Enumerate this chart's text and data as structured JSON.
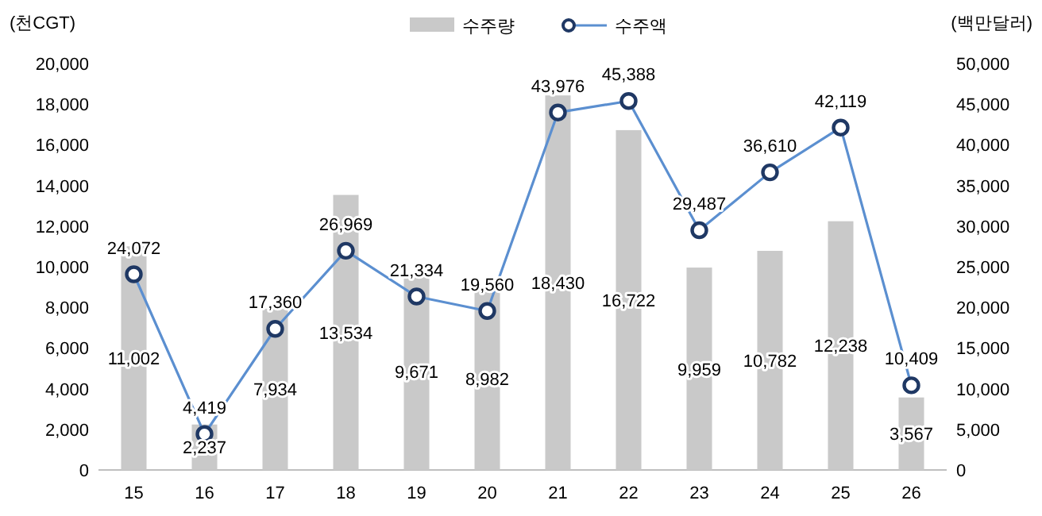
{
  "chart_data": {
    "type": "bar",
    "categories": [
      "15",
      "16",
      "17",
      "18",
      "19",
      "20",
      "21",
      "22",
      "23",
      "24",
      "25",
      "26"
    ],
    "ylabel": "(천CGT)",
    "y2label": "(백만달러)",
    "ylim": [
      0,
      20000
    ],
    "yticks": [
      {
        "value": 0,
        "label": "0"
      },
      {
        "value": 2000,
        "label": "2,000"
      },
      {
        "value": 4000,
        "label": "4,000"
      },
      {
        "value": 6000,
        "label": "6,000"
      },
      {
        "value": 8000,
        "label": "8,000"
      },
      {
        "value": 10000,
        "label": "10,000"
      },
      {
        "value": 12000,
        "label": "12,000"
      },
      {
        "value": 14000,
        "label": "14,000"
      },
      {
        "value": 16000,
        "label": "16,000"
      },
      {
        "value": 18000,
        "label": "18,000"
      },
      {
        "value": 20000,
        "label": "20,000"
      }
    ],
    "y2lim": [
      0,
      50000
    ],
    "y2ticks": [
      {
        "value": 0,
        "label": "0"
      },
      {
        "value": 5000,
        "label": "5,000"
      },
      {
        "value": 10000,
        "label": "10,000"
      },
      {
        "value": 15000,
        "label": "15,000"
      },
      {
        "value": 20000,
        "label": "20,000"
      },
      {
        "value": 25000,
        "label": "25,000"
      },
      {
        "value": 30000,
        "label": "30,000"
      },
      {
        "value": 35000,
        "label": "35,000"
      },
      {
        "value": 40000,
        "label": "40,000"
      },
      {
        "value": 45000,
        "label": "45,000"
      },
      {
        "value": 50000,
        "label": "50,000"
      }
    ],
    "legend": "top",
    "grid": false,
    "marker": "circle",
    "series": [
      {
        "name": "수주량",
        "color": "#c9c9c9",
        "values": [
          11002,
          2237,
          7934,
          13534,
          9671,
          8982,
          18430,
          16722,
          9959,
          10782,
          12238,
          3567
        ],
        "value_labels": [
          "11,002",
          "2,237",
          "7,934",
          "13,534",
          "9,671",
          "8,982",
          "18,430",
          "16,722",
          "9,959",
          "10,782",
          "12,238",
          "3,567"
        ]
      },
      {
        "name": "수주액",
        "type": "line",
        "axis": "y2",
        "color": "#5b8fd0",
        "values": [
          24072,
          4419,
          17360,
          26969,
          21334,
          19560,
          43976,
          45388,
          29487,
          36610,
          42119,
          10409
        ],
        "value_labels": [
          "24,072",
          "4,419",
          "17,360",
          "26,969",
          "21,334",
          "19,560",
          "43,976",
          "45,388",
          "29,487",
          "36,610",
          "42,119",
          "10,409"
        ]
      }
    ]
  }
}
